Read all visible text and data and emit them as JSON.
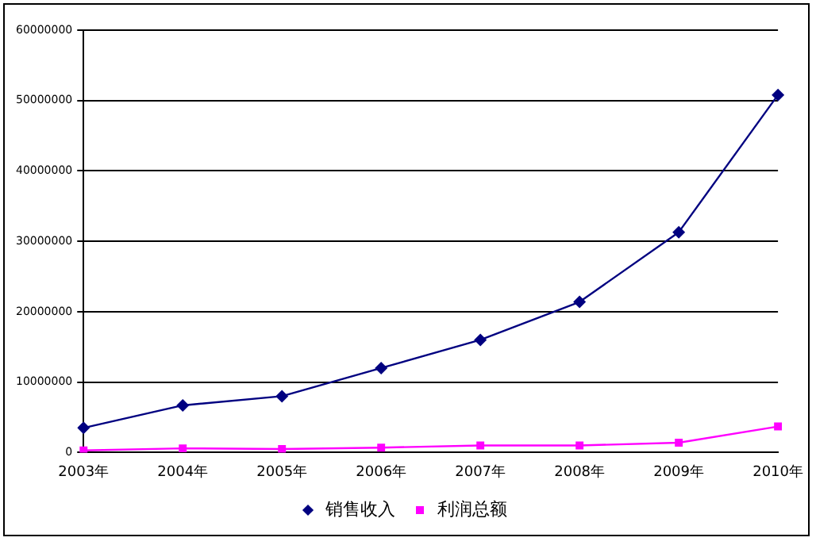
{
  "chart_data": {
    "type": "line",
    "categories": [
      "2003年",
      "2004年",
      "2005年",
      "2006年",
      "2007年",
      "2008年",
      "2009年",
      "2010年"
    ],
    "series": [
      {
        "name": "销售收入",
        "color": "#000080",
        "marker": "diamond",
        "values": [
          3500000,
          6700000,
          8000000,
          12000000,
          16000000,
          21400000,
          31300000,
          50800000
        ]
      },
      {
        "name": "利润总额",
        "color": "#ff00ff",
        "marker": "square",
        "values": [
          300000,
          600000,
          500000,
          700000,
          1000000,
          1000000,
          1400000,
          3700000
        ]
      }
    ],
    "ylim": [
      0,
      60000000
    ],
    "yticks": [
      0,
      10000000,
      20000000,
      30000000,
      40000000,
      50000000,
      60000000
    ],
    "grid": "y",
    "legend": "bottom",
    "line_style": "solid"
  }
}
